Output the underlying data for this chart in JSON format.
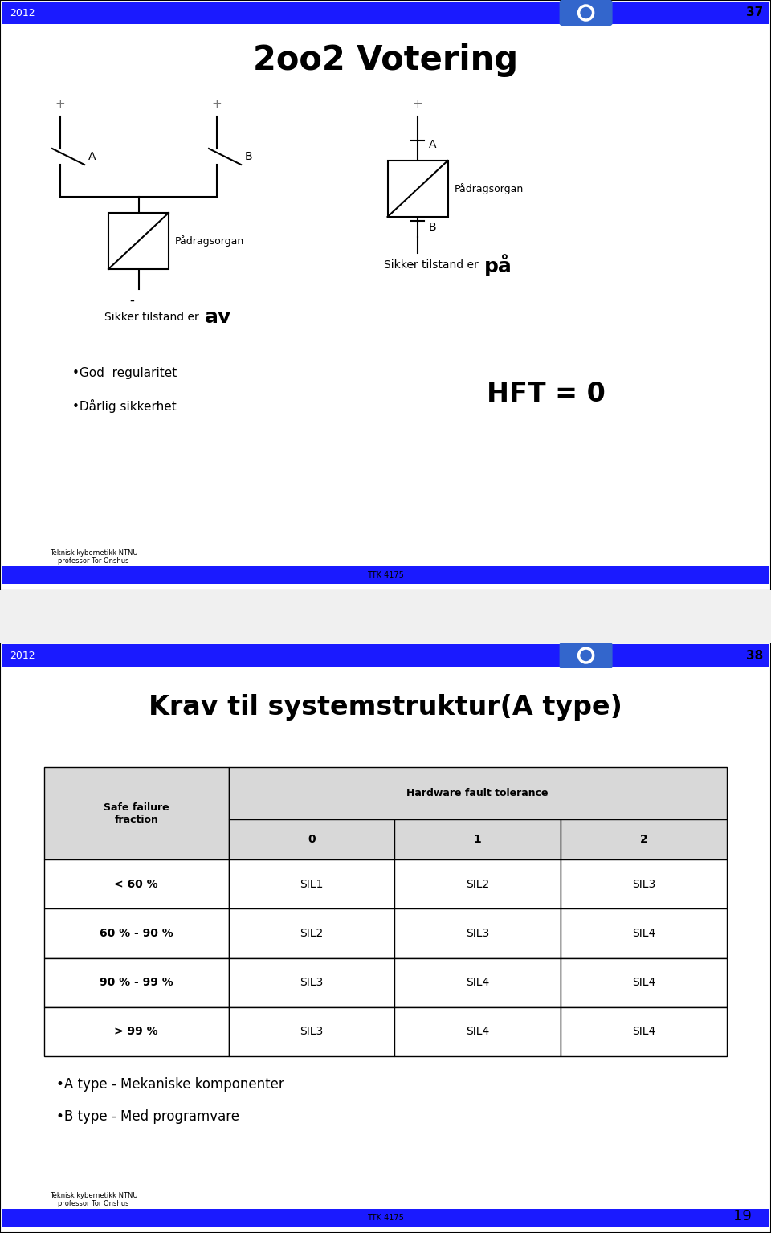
{
  "slide1": {
    "year": "2012",
    "slide_num": "37",
    "title": "2oo2 Votering",
    "bullet1": "•God  regularitet",
    "bullet2": "•Dårlig sikkerhet",
    "hft_text": "HFT = 0",
    "footer_left": "Teknisk kybernetikk NTNU\nprofessor Tor Onshus",
    "footer_center": "TTK 4175"
  },
  "slide2": {
    "year": "2012",
    "slide_num": "38",
    "title": "Krav til systemstruktur(A type)",
    "table_header_col1": "Safe failure\nfraction",
    "table_header_span": "Hardware fault tolerance",
    "table_sub_headers": [
      "0",
      "1",
      "2"
    ],
    "table_rows": [
      [
        "< 60 %",
        "SIL1",
        "SIL2",
        "SIL3"
      ],
      [
        "60 % - 90 %",
        "SIL2",
        "SIL3",
        "SIL4"
      ],
      [
        "90 % - 99 %",
        "SIL3",
        "SIL4",
        "SIL4"
      ],
      [
        "> 99 %",
        "SIL3",
        "SIL4",
        "SIL4"
      ]
    ],
    "bullet1": "•A type - Mekaniske komponenter",
    "bullet2": "•B type - Med programvare",
    "footer_left": "Teknisk kybernetikk NTNU\nprofessor Tor Onshus",
    "footer_center": "TTK 4175"
  },
  "page_num": "19",
  "bg_color": "#f0f0f0",
  "slide_bg": "#ffffff",
  "header_blue": "#1a1aff",
  "icon_blue": "#3366cc",
  "border_color": "#000000",
  "table_header_bg": "#d8d8d8",
  "table_border": "#000000"
}
